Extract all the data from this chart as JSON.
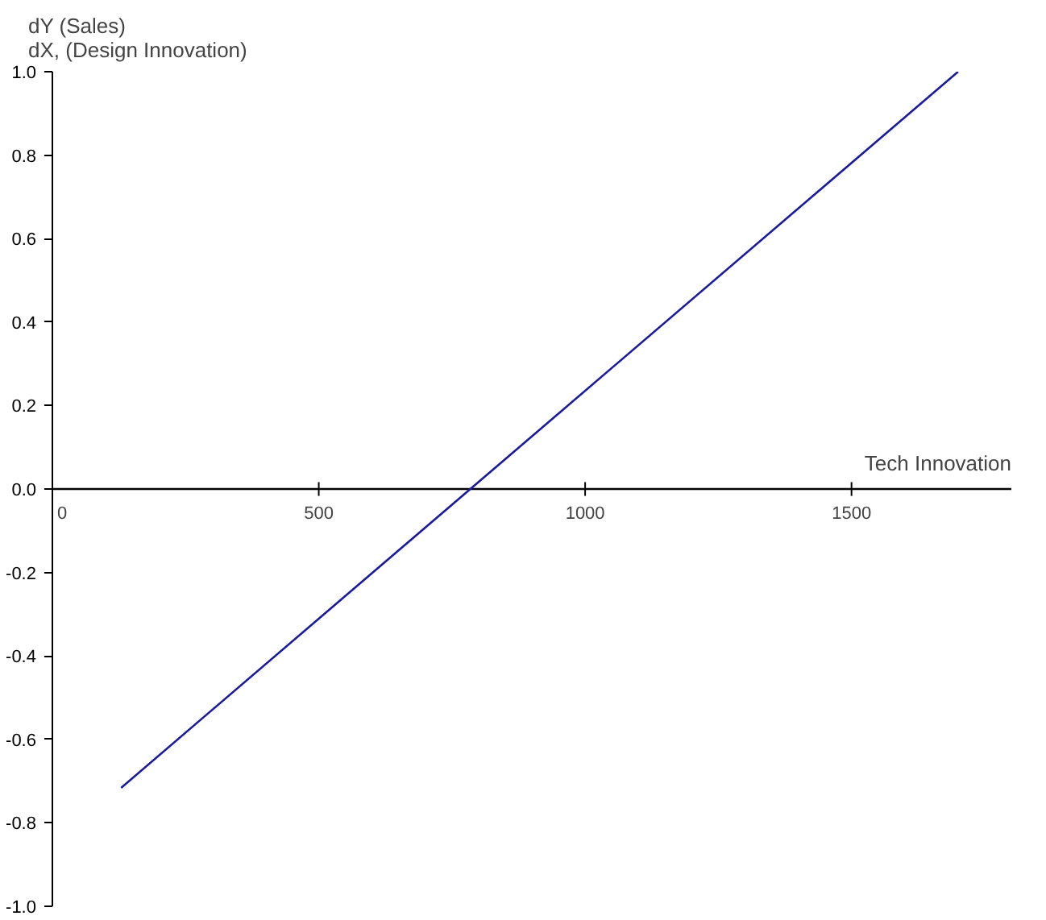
{
  "chart_data": {
    "type": "line",
    "xlabel": "Tech Innovation",
    "ylabel": "dY (Sales)\ndX, (Design Innovation)",
    "x": [
      129,
      1700
    ],
    "series": [
      {
        "color": "#1a1aa0",
        "values": [
          -0.716,
          1.0
        ]
      }
    ],
    "xlim": [
      0,
      1800
    ],
    "xticks": [
      0,
      500,
      1000,
      1500
    ],
    "ylim": [
      -1.0,
      1.0
    ],
    "yticks": [
      {
        "value": -1.0,
        "label": "-1.0"
      },
      {
        "value": -0.8,
        "label": "-0.8"
      },
      {
        "value": -0.6,
        "label": "-0.6"
      },
      {
        "value": -0.4,
        "label": "-0.4"
      },
      {
        "value": -0.2,
        "label": "-0.2"
      },
      {
        "value": 0.0,
        "label": "0.0"
      },
      {
        "value": 0.2,
        "label": "0.2"
      },
      {
        "value": 0.4,
        "label": "0.4"
      },
      {
        "value": 0.6,
        "label": "0.6"
      },
      {
        "value": 0.8,
        "label": "0.8"
      },
      {
        "value": 1.0,
        "label": "1.0"
      }
    ],
    "grid": false,
    "line_style": "solid",
    "marker": "none"
  }
}
